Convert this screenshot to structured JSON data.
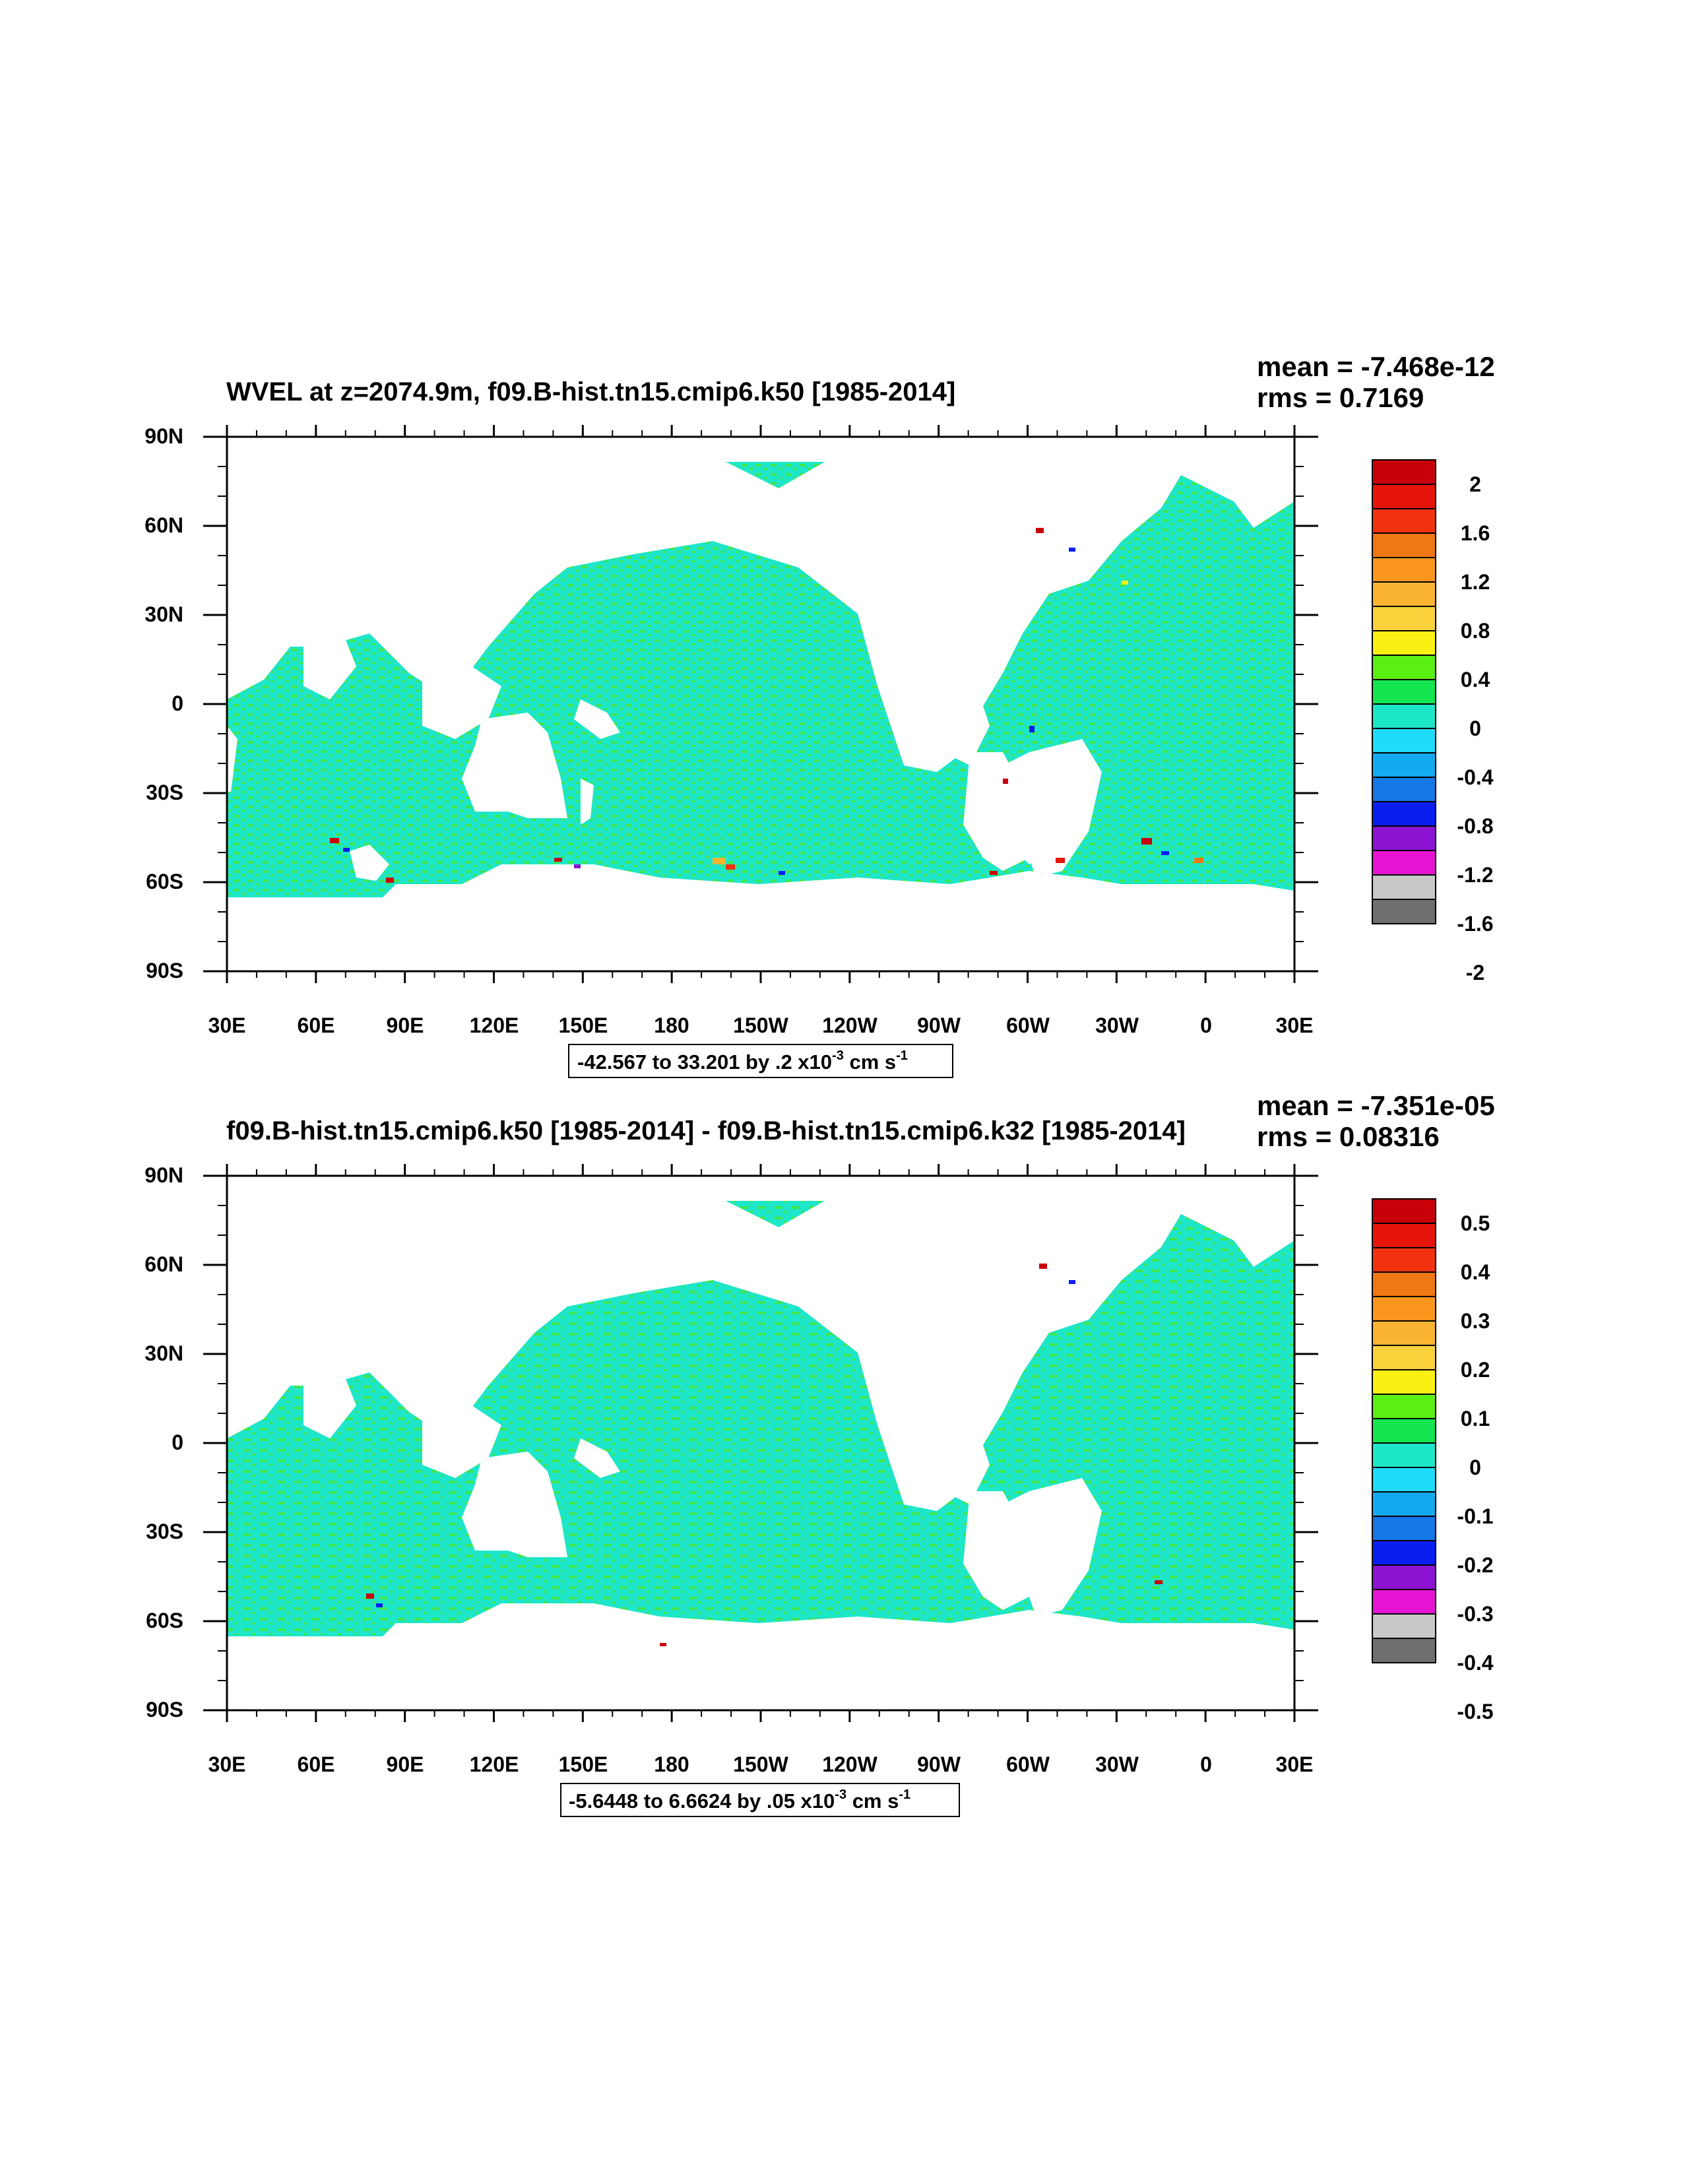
{
  "panels": [
    {
      "title": "WVEL at z=2074.9m, f09.B-hist.tn15.cmip6.k50 [1985-2014]",
      "mean_text": "mean = -7.468e-12",
      "rms_text": "rms = 0.7169",
      "info_main": "-42.567 to 33.201 by .2 x10",
      "info_exp": "-3",
      "info_unit": " cm s",
      "info_unit_exp": "-1",
      "colorbar_labels": [
        "2",
        "1.6",
        "1.2",
        "0.8",
        "0.4",
        "0",
        "-0.4",
        "-0.8",
        "-1.2",
        "-1.6",
        "-2"
      ],
      "dominant_color": "#1ee6c8"
    },
    {
      "title": "f09.B-hist.tn15.cmip6.k50 [1985-2014] - f09.B-hist.tn15.cmip6.k32 [1985-2014]",
      "mean_text": "mean = -7.351e-05",
      "rms_text": "rms = 0.08316",
      "info_main": "-5.6448 to 6.6624 by .05 x10",
      "info_exp": "-3",
      "info_unit": " cm s",
      "info_unit_exp": "-1",
      "colorbar_labels": [
        "0.5",
        "0.4",
        "0.3",
        "0.2",
        "0.1",
        "0",
        "-0.1",
        "-0.2",
        "-0.3",
        "-0.4",
        "-0.5"
      ],
      "dominant_color": "#1ee6c8"
    }
  ],
  "lat_labels": [
    "90N",
    "60N",
    "30N",
    "0",
    "30S",
    "60S",
    "90S"
  ],
  "lon_labels": [
    "30E",
    "60E",
    "90E",
    "120E",
    "150E",
    "180",
    "150W",
    "120W",
    "90W",
    "60W",
    "30W",
    "0",
    "30E"
  ],
  "colorbar_colors": [
    "#c8000a",
    "#e6140a",
    "#f0320f",
    "#f07814",
    "#fa961e",
    "#fab432",
    "#fad23c",
    "#faf014",
    "#5af014",
    "#14e650",
    "#1ee6c8",
    "#1edcfa",
    "#14aaf0",
    "#1478e6",
    "#0a1ef0",
    "#8c14d2",
    "#e614d2",
    "#c8c8c8",
    "#6e6e6e"
  ],
  "land_color": "#ffffff",
  "ocean_secondary_color": "#3ee650"
}
